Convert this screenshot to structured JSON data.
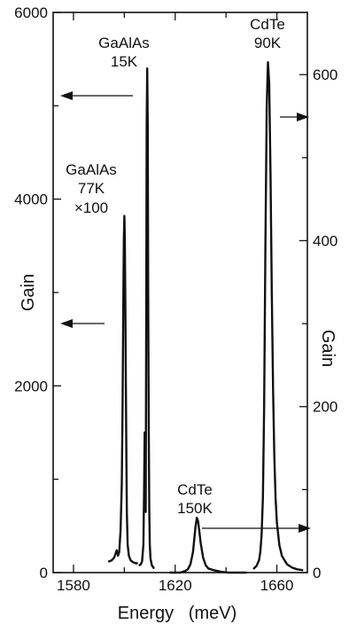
{
  "chart_data": {
    "type": "line",
    "title": "",
    "xlabel": "Energy   (meV)",
    "ylabel_left": "Gain",
    "ylabel_right": "Gain",
    "xlim": [
      1572,
      1672
    ],
    "ylim_left": [
      0,
      6000
    ],
    "ylim_right": [
      0,
      675
    ],
    "x_ticks": [
      1580,
      1620,
      1660
    ],
    "y_ticks_left": [
      0,
      2000,
      4000,
      6000
    ],
    "y_ticks_right": [
      0,
      200,
      400,
      600
    ],
    "grid": false,
    "series": [
      {
        "name": "GaAlAs 77K ×100",
        "axis": "left",
        "x": [
          1594,
          1595,
          1596,
          1597,
          1597.5,
          1598,
          1598.5,
          1599,
          1599.3,
          1599.6,
          1599.8,
          1600,
          1600.2,
          1600.4,
          1600.6,
          1600.8,
          1601,
          1601.3,
          1601.8,
          1602.5,
          1603.5,
          1604.5,
          1605
        ],
        "y": [
          120,
          130,
          160,
          240,
          180,
          220,
          450,
          950,
          1800,
          2900,
          3550,
          3820,
          3600,
          2900,
          2000,
          1200,
          650,
          300,
          180,
          130,
          110,
          100,
          100
        ]
      },
      {
        "name": "GaAlAs 15K",
        "axis": "left",
        "x": [
          1606,
          1606.5,
          1607,
          1607.5,
          1607.8,
          1608,
          1608.2,
          1608.4,
          1608.6,
          1608.8,
          1609,
          1609.2,
          1609.4,
          1609.6,
          1609.8,
          1610,
          1610.3,
          1610.8,
          1611.5
        ],
        "y": [
          80,
          90,
          120,
          300,
          900,
          1500,
          1200,
          650,
          2400,
          4800,
          5400,
          4800,
          3000,
          1600,
          700,
          300,
          150,
          80,
          50
        ]
      },
      {
        "name": "CdTe 150K",
        "axis": "right",
        "x": [
          1618,
          1620,
          1622,
          1624,
          1625,
          1626,
          1627,
          1627.5,
          1628,
          1628.5,
          1629,
          1629.5,
          1630,
          1631,
          1632,
          1633,
          1635,
          1638,
          1641,
          1645,
          1648
        ],
        "y": [
          0,
          0,
          0,
          2,
          4,
          10,
          25,
          40,
          55,
          66,
          62,
          50,
          36,
          18,
          9,
          5,
          3,
          1,
          0,
          0,
          0
        ]
      },
      {
        "name": "CdTe 90K",
        "axis": "right",
        "x": [
          1651,
          1652,
          1653,
          1653.5,
          1654,
          1654.5,
          1655,
          1655.5,
          1656,
          1656.5,
          1657,
          1657.5,
          1658,
          1658.5,
          1659,
          1659.5,
          1660,
          1661,
          1662,
          1664,
          1666,
          1668,
          1670
        ],
        "y": [
          5,
          8,
          15,
          25,
          45,
          90,
          200,
          390,
          560,
          615,
          590,
          480,
          340,
          220,
          140,
          90,
          60,
          33,
          20,
          10,
          6,
          4,
          3
        ]
      }
    ],
    "annotations": [
      {
        "lines": [
          "GaAlAs",
          "77K",
          "×100"
        ]
      },
      {
        "lines": [
          "GaAlAs",
          "15K"
        ]
      },
      {
        "lines": [
          "CdTe",
          "90K"
        ]
      },
      {
        "lines": [
          "CdTe",
          "150K"
        ]
      }
    ]
  }
}
